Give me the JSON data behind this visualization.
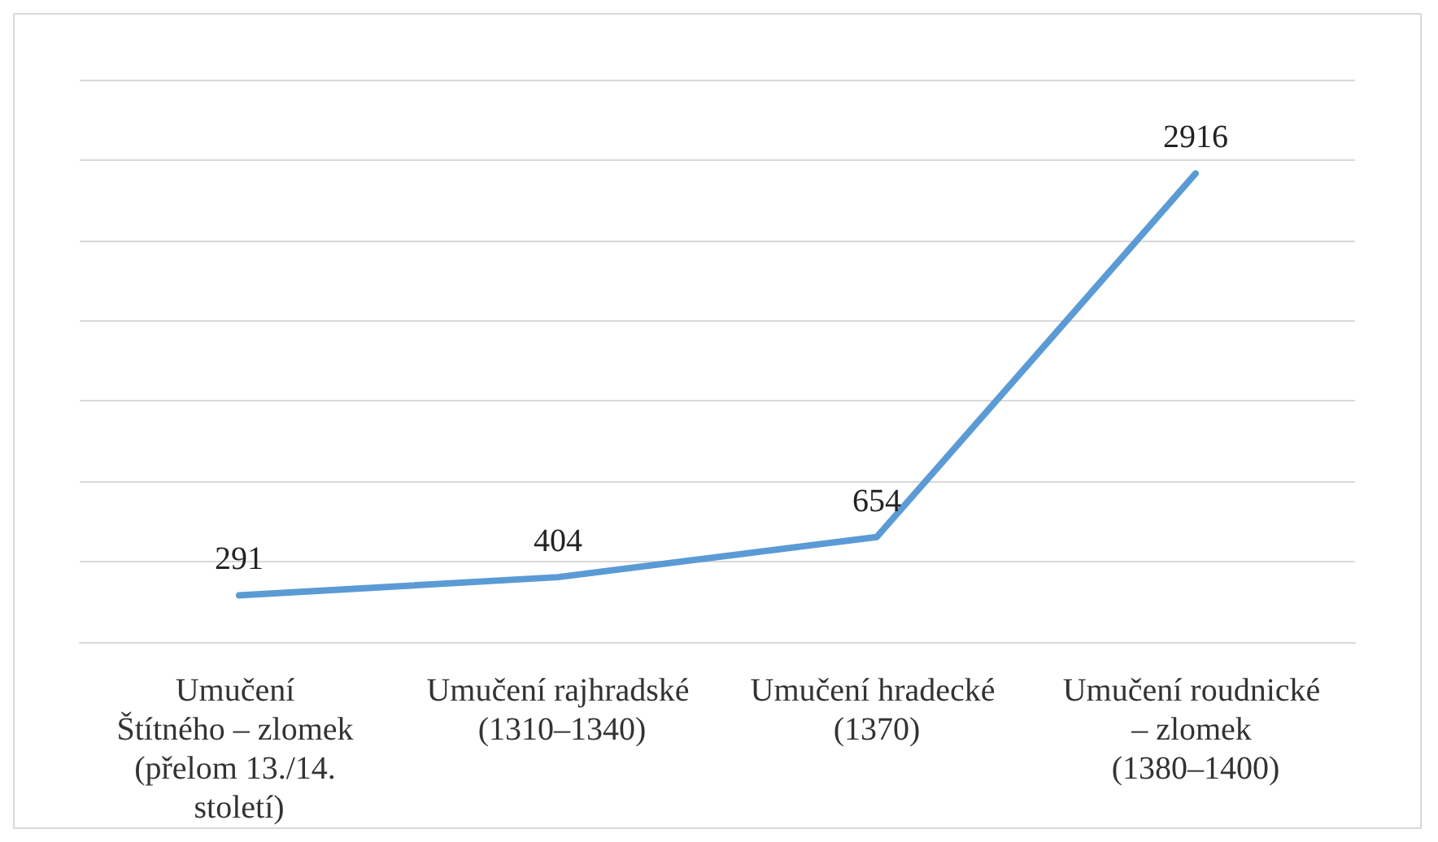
{
  "chart_data": {
    "type": "line",
    "categories": [
      "Umučení Štítného – zlomek (přelom 13./14. století)",
      "Umučení rajhradské (1310–1340)",
      "Umučení hradecké (1370)",
      "Umučení roudnické – zlomek (1380–1400)"
    ],
    "series": [
      {
        "color": "#5b9bd5",
        "values": [
          291,
          404,
          654,
          2916
        ]
      }
    ],
    "ylim": [
      0,
      3500
    ],
    "yticks": [
      0,
      500,
      1000,
      1500,
      2000,
      2500,
      3000,
      3500
    ],
    "grid": "y",
    "tick_labels": "x",
    "data_labels": true,
    "marker": "none",
    "line_style": "solid"
  }
}
